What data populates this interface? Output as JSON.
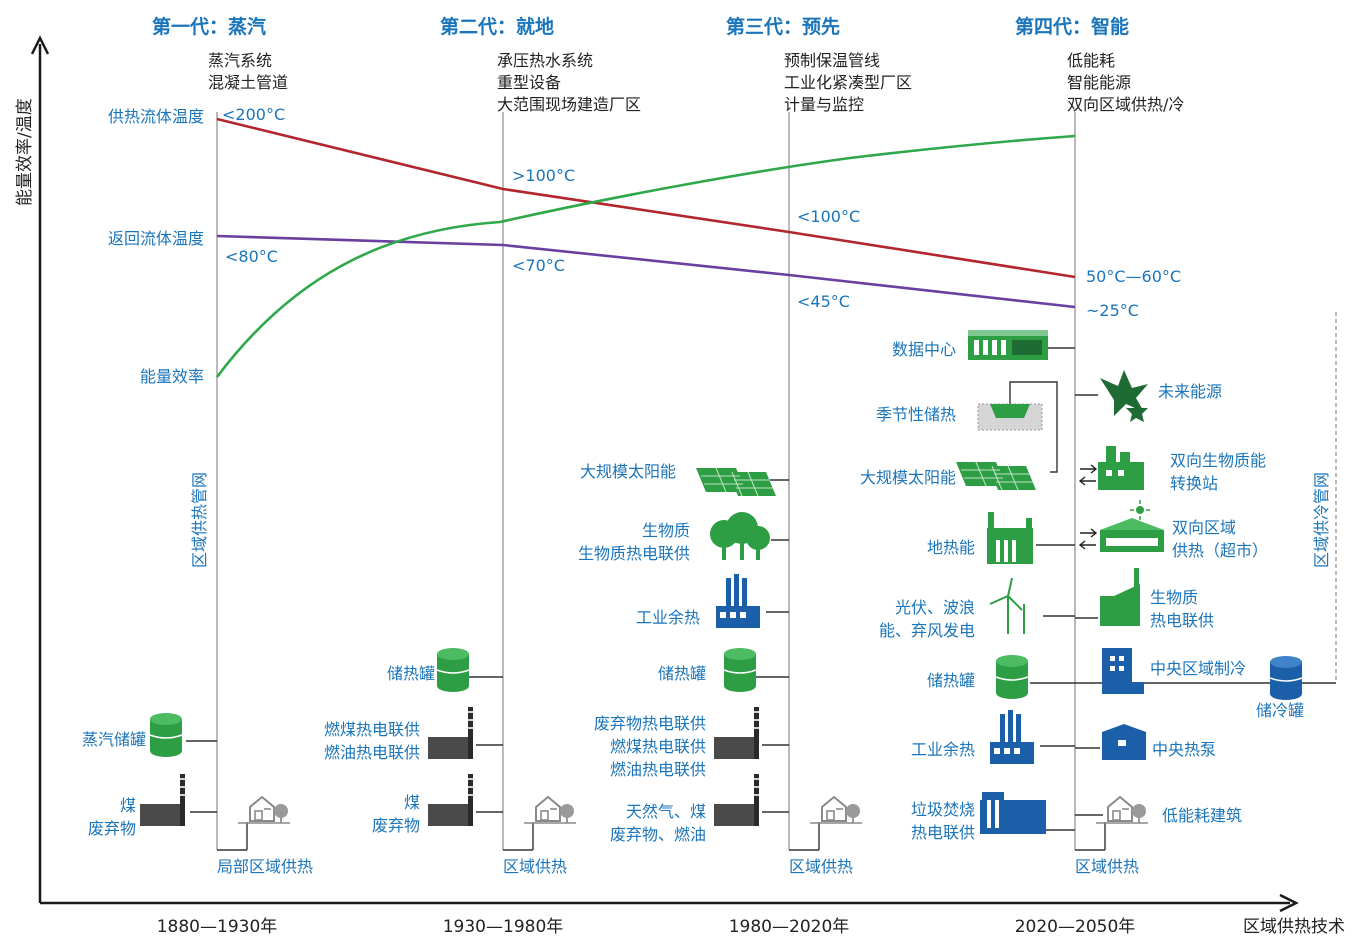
{
  "axes": {
    "y_label": "能量效率/温度",
    "x_label": "区域供热技术",
    "periods": [
      "1880—1930年",
      "1930—1980年",
      "1980—2020年",
      "2020—2050年"
    ]
  },
  "generations": [
    {
      "title": "第一代：蒸汽",
      "features": [
        "蒸汽系统",
        "混凝土管道"
      ]
    },
    {
      "title": "第二代：就地",
      "features": [
        "承压热水系统",
        "重型设备",
        "大范围现场建造厂区"
      ]
    },
    {
      "title": "第三代：预先",
      "features": [
        "预制保温管线",
        "工业化紧凑型厂区",
        "计量与监控"
      ]
    },
    {
      "title": "第四代：智能",
      "features": [
        "低能耗",
        "智能能源",
        "双向区域供热/冷"
      ]
    }
  ],
  "curves": {
    "supply": {
      "label": "供热流体温度",
      "color": "#b3262e",
      "points": [
        "<200°C",
        ">100°C",
        "<100°C",
        "50°C—60°C"
      ]
    },
    "return": {
      "label": "返回流体温度",
      "color": "#6b3fa0",
      "points": [
        "<80°C",
        "<70°C",
        "<45°C",
        "~25°C"
      ]
    },
    "efficiency": {
      "label": "能量效率",
      "color": "#2ea84a"
    }
  },
  "network_labels": {
    "heating": "区域供热管网",
    "cooling": "区域供冷管网"
  },
  "gen1": {
    "sources": [
      "蒸汽储罐",
      "煤",
      "废弃物"
    ],
    "consumer": "局部区域供热"
  },
  "gen2": {
    "sources": [
      "储热罐",
      "燃煤热电联供",
      "燃油热电联供",
      "煤",
      "废弃物"
    ],
    "consumer": "区域供热"
  },
  "gen3": {
    "sources": [
      "大规模太阳能",
      "生物质",
      "生物质热电联供",
      "工业余热",
      "储热罐",
      "废弃物热电联供",
      "燃煤热电联供",
      "燃油热电联供",
      "天然气、煤",
      "废弃物、燃油"
    ],
    "consumer": "区域供热"
  },
  "gen4": {
    "left": [
      "数据中心",
      "季节性储热",
      "大规模太阳能",
      "地热能",
      "光伏、波浪",
      "能、弃风发电",
      "储热罐",
      "工业余热",
      "垃圾焚烧",
      "热电联供"
    ],
    "right": [
      "未来能源",
      "双向生物质能",
      "转换站",
      "双向区域",
      "供热（超市）",
      "生物质",
      "热电联供",
      "中央区域制冷",
      "储冷罐",
      "中央热泵",
      "低能耗建筑"
    ],
    "consumer": "区域供热"
  },
  "colors": {
    "accent": "#1b75bb",
    "green": "#2e9e45",
    "dark": "#4a4a4a",
    "line": "#888888"
  }
}
